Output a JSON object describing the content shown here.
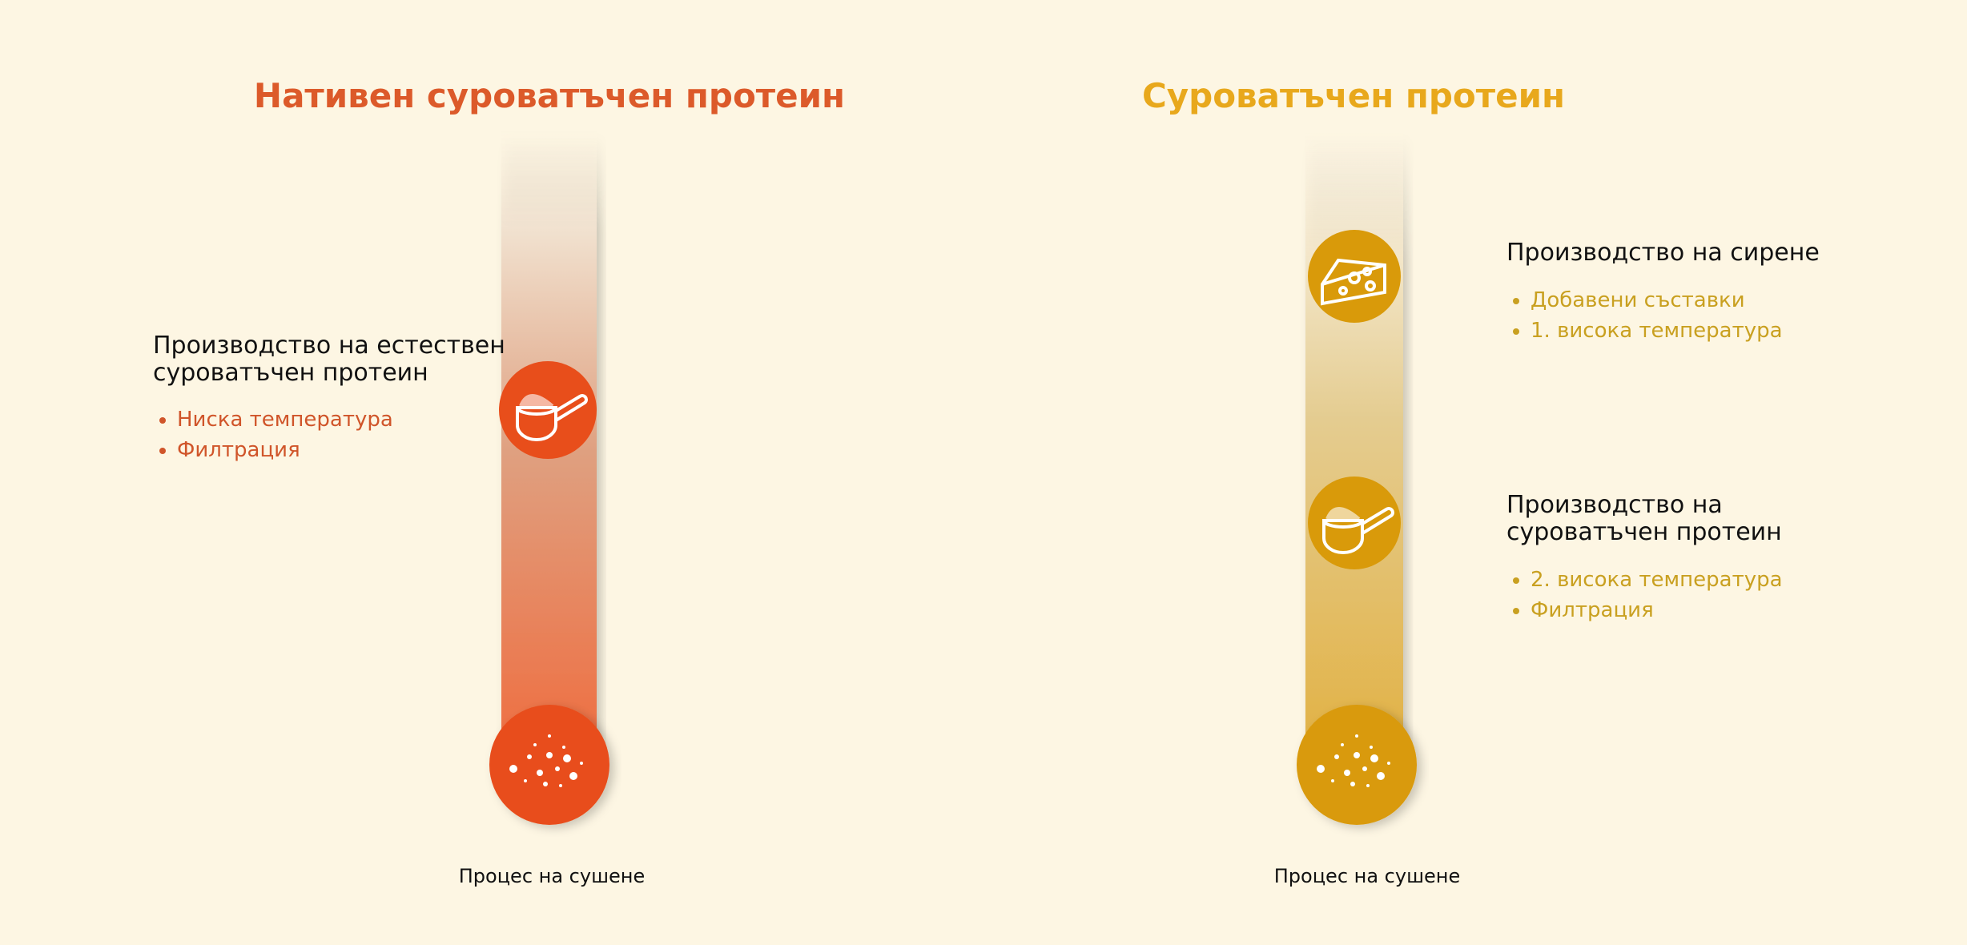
{
  "columns": [
    {
      "title": "Нативен суроватъчен протеин",
      "steps": [
        {
          "heading": "Производство на естествен суроватъчен протеин",
          "bullets": [
            "Ниска температура",
            "Филтрация"
          ]
        }
      ],
      "footer": "Процес на сушене"
    },
    {
      "title": "Суроватъчен протеин",
      "steps": [
        {
          "heading": "Производство на сирене",
          "bullets": [
            "Добавени съставки",
            "1. висока температура"
          ]
        },
        {
          "heading": "Производство на суроватъчен протеин",
          "bullets": [
            "2. висока температура",
            "Филтрация"
          ]
        }
      ],
      "footer": "Процес на сушене"
    }
  ]
}
